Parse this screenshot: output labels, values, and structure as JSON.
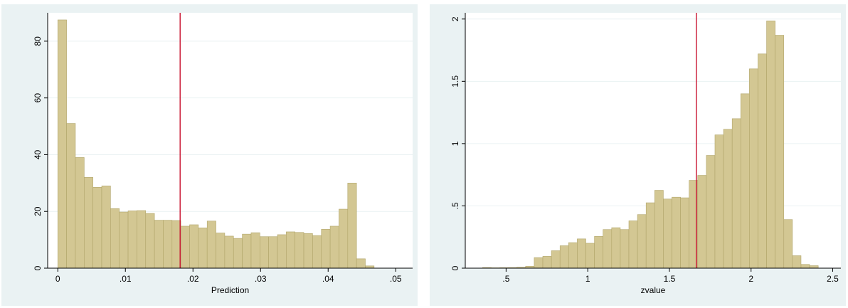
{
  "charts": [
    {
      "type": "bar",
      "xlabel": "Prediction",
      "ylabel": "",
      "x_ticks": [
        0,
        0.01,
        0.02,
        0.03,
        0.04,
        0.05
      ],
      "x_tick_labels": [
        "0",
        ".01",
        ".02",
        ".03",
        ".04",
        ".05"
      ],
      "y_ticks": [
        0,
        20,
        40,
        60,
        80
      ],
      "y_tick_labels": [
        "0",
        "20",
        "40",
        "60",
        "80"
      ],
      "xlim": [
        -0.0015,
        0.0525
      ],
      "ylim": [
        0,
        90
      ],
      "bin_start": 0,
      "bin_width": 0.0013,
      "values": [
        87.5,
        51,
        39,
        32,
        28.5,
        29,
        21,
        19.8,
        20.2,
        20.3,
        19.3,
        16.9,
        16.9,
        16.8,
        14.8,
        15.3,
        14.2,
        16.6,
        12.4,
        11.3,
        10.5,
        12,
        12.5,
        11.1,
        11.1,
        11.8,
        12.8,
        12.6,
        12.2,
        11.5,
        13.7,
        14.8,
        20.8,
        30,
        3.3,
        0.8
      ],
      "vline": 0.0181,
      "grid": true,
      "colors": {
        "bar_fill": "#d3c793",
        "bar_edge": "#b1a56a",
        "vline": "#c8102e",
        "grid": "#eaf2f3",
        "plot_bg": "#ffffff",
        "panel_bg": "#eaf2f3"
      }
    },
    {
      "type": "bar",
      "xlabel": "zvalue",
      "ylabel": "",
      "x_ticks": [
        0.5,
        1,
        1.5,
        2,
        2.5
      ],
      "x_tick_labels": [
        ".5",
        "1",
        "1.5",
        "2",
        "2.5"
      ],
      "y_ticks": [
        0,
        0.5,
        1,
        1.5,
        2
      ],
      "y_tick_labels": [
        "0",
        ".5",
        "1",
        "1.5",
        "2"
      ],
      "xlim": [
        0.25,
        2.55
      ],
      "ylim": [
        0,
        2.05
      ],
      "bin_start": 0.356,
      "bin_width": 0.0527,
      "values": [
        0.005,
        0.003,
        0.004,
        0.005,
        0.008,
        0.015,
        0.085,
        0.095,
        0.14,
        0.18,
        0.205,
        0.235,
        0.2,
        0.255,
        0.31,
        0.325,
        0.31,
        0.38,
        0.43,
        0.525,
        0.625,
        0.555,
        0.57,
        0.565,
        0.705,
        0.745,
        0.905,
        1.07,
        1.115,
        1.2,
        1.4,
        1.6,
        1.72,
        1.985,
        1.87,
        0.39,
        0.1,
        0.03,
        0.02
      ],
      "vline": 1.665,
      "grid": true,
      "colors": {
        "bar_fill": "#d3c793",
        "bar_edge": "#b1a56a",
        "vline": "#c8102e",
        "grid": "#eaf2f3",
        "plot_bg": "#ffffff",
        "panel_bg": "#eaf2f3"
      }
    }
  ]
}
